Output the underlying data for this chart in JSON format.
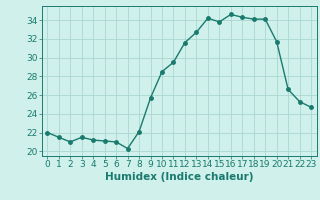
{
  "x": [
    0,
    1,
    2,
    3,
    4,
    5,
    6,
    7,
    8,
    9,
    10,
    11,
    12,
    13,
    14,
    15,
    16,
    17,
    18,
    19,
    20,
    21,
    22,
    23
  ],
  "y": [
    22.0,
    21.5,
    21.0,
    21.5,
    21.2,
    21.1,
    21.0,
    20.3,
    22.1,
    25.7,
    28.5,
    29.5,
    31.6,
    32.7,
    34.2,
    33.8,
    34.6,
    34.3,
    34.1,
    34.1,
    31.7,
    26.6,
    25.3,
    24.7
  ],
  "line_color": "#1a7a6e",
  "marker": "o",
  "marker_size": 2.5,
  "linewidth": 1.0,
  "bg_color": "#cff0eb",
  "grid_color": "#aad8d0",
  "xlabel": "Humidex (Indice chaleur)",
  "xlim": [
    -0.5,
    23.5
  ],
  "ylim": [
    19.5,
    35.5
  ],
  "yticks": [
    20,
    22,
    24,
    26,
    28,
    30,
    32,
    34
  ],
  "xticks": [
    0,
    1,
    2,
    3,
    4,
    5,
    6,
    7,
    8,
    9,
    10,
    11,
    12,
    13,
    14,
    15,
    16,
    17,
    18,
    19,
    20,
    21,
    22,
    23
  ],
  "tick_color": "#1a7a6e",
  "spine_color": "#1a7a6e",
  "font_color": "#1a7a6e",
  "xlabel_fontsize": 7.5,
  "tick_fontsize": 6.5
}
